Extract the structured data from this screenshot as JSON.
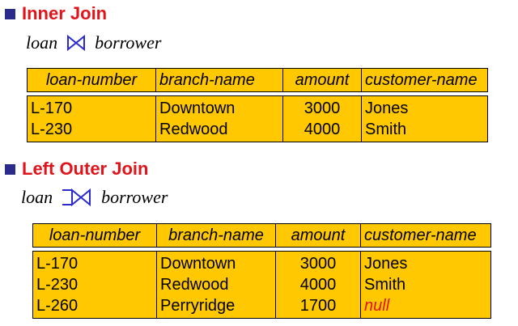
{
  "inner_join": {
    "title": "Inner Join",
    "left_relation": "loan",
    "right_relation": "borrower",
    "columns": [
      "loan-number",
      "branch-name",
      "amount",
      "customer-name"
    ],
    "rows": [
      [
        "L-170",
        "Downtown",
        "3000",
        "Jones"
      ],
      [
        "L-230",
        "Redwood",
        "4000",
        "Smith"
      ]
    ]
  },
  "left_outer_join": {
    "title": "Left Outer Join",
    "left_relation": "loan",
    "right_relation": "borrower",
    "columns": [
      "loan-number",
      "branch-name",
      "amount",
      "customer-name"
    ],
    "rows": [
      [
        "L-170",
        "Downtown",
        "3000",
        "Jones"
      ],
      [
        "L-230",
        "Redwood",
        "4000",
        "Smith"
      ],
      [
        "L-260",
        "Perryridge",
        "1700",
        "null"
      ]
    ]
  },
  "colors": {
    "title": "#e1141b",
    "bullet": "#2b2b8c",
    "table_fill": "#ffc800",
    "join_symbol": "#2a2ad0",
    "null_value": "#e1141b"
  }
}
